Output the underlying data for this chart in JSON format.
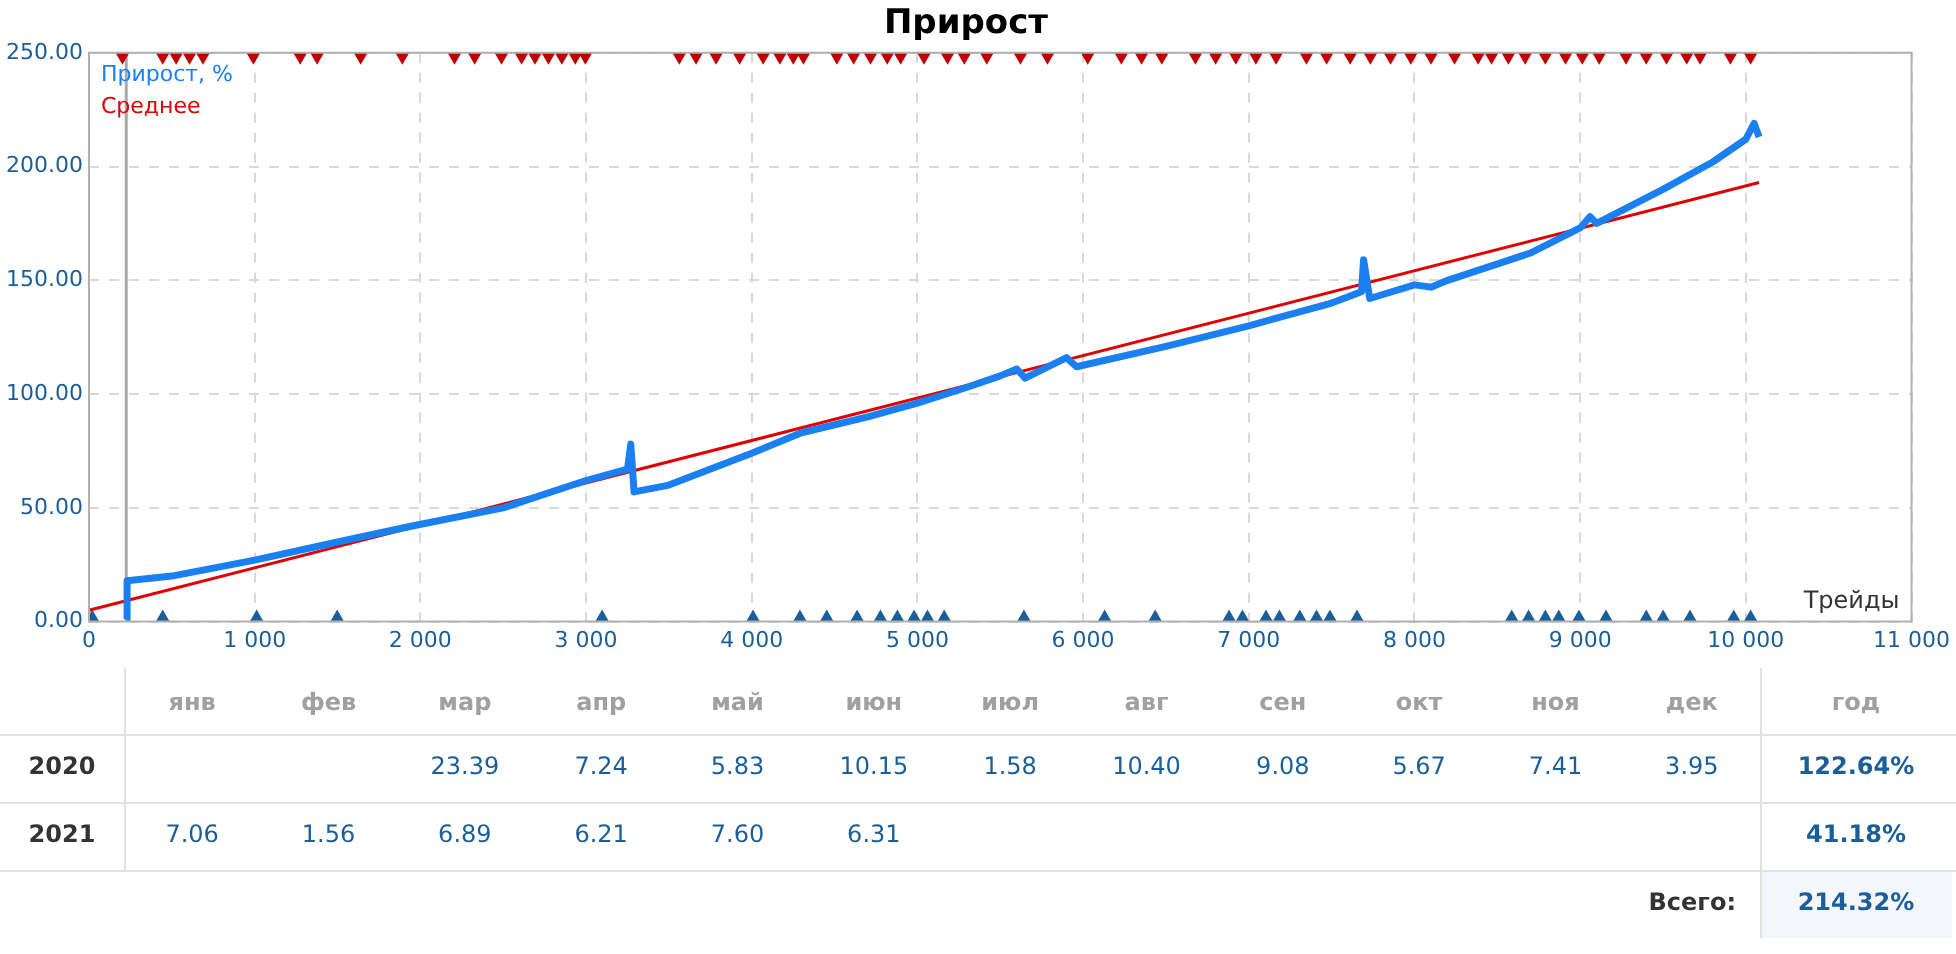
{
  "chart_data": [
    {
      "type": "line",
      "title": "Прирост",
      "xlabel": "Трейды",
      "xlim": [
        0,
        11000
      ],
      "ylim": [
        0,
        250
      ],
      "xticks": [
        0,
        {
          "value": 1000,
          "label": "1 000"
        },
        {
          "value": 2000,
          "label": "2 000"
        },
        {
          "value": 3000,
          "label": "3 000"
        },
        {
          "value": 4000,
          "label": "4 000"
        },
        {
          "value": 5000,
          "label": "5 000"
        },
        {
          "value": 6000,
          "label": "6 000"
        },
        {
          "value": 7000,
          "label": "7 000"
        },
        {
          "value": 8000,
          "label": "8 000"
        },
        {
          "value": 9000,
          "label": "9 000"
        },
        {
          "value": 10000,
          "label": "10 000"
        },
        {
          "value": 11000,
          "label": "11 000"
        }
      ],
      "yticks": [
        {
          "value": 0,
          "label": "0.00"
        },
        {
          "value": 50,
          "label": "50.00"
        },
        {
          "value": 100,
          "label": "100.00"
        },
        {
          "value": 150,
          "label": "150.00"
        },
        {
          "value": 200,
          "label": "200.00"
        },
        {
          "value": 250,
          "label": "250.00"
        }
      ],
      "grid": true,
      "legend": "top left",
      "line_style": "solid",
      "ref_lines": [
        {
          "axis": "x",
          "value": 225,
          "color": "#aaaaaa"
        }
      ],
      "series": [
        {
          "type": "line",
          "name": "Прирост, %",
          "color": "#1a7ff0",
          "marker": "none",
          "x": [
            225,
            230,
            500,
            1000,
            1500,
            1950,
            2500,
            3000,
            3250,
            3270,
            3290,
            3500,
            4000,
            4300,
            4700,
            5000,
            5300,
            5500,
            5600,
            5650,
            5900,
            5960,
            6500,
            7000,
            7500,
            7680,
            7693,
            7730,
            8000,
            8100,
            8200,
            8700,
            9000,
            9060,
            9100,
            9500,
            9800,
            10000,
            10050,
            10080
          ],
          "values": [
            1,
            18,
            20,
            27,
            35,
            42,
            50,
            62,
            67,
            78,
            57,
            60,
            74,
            83,
            90,
            96,
            103,
            108,
            111,
            107,
            116,
            112,
            121,
            130,
            140,
            145,
            159,
            142,
            148,
            147,
            150,
            162,
            173,
            178,
            175,
            190,
            202,
            212,
            219,
            213
          ]
        },
        {
          "type": "line",
          "name": "Среднее",
          "color": "#e00000",
          "marker": "none",
          "x": [
            0,
            10080
          ],
          "values": [
            5,
            193
          ]
        },
        {
          "type": "scatter",
          "color": "#c00000",
          "marker": "triangle",
          "x": [
            202,
            445,
            526,
            607,
            688,
            992,
            1275,
            1377,
            1640,
            1891,
            2206,
            2328,
            2490,
            2611,
            2692,
            2773,
            2854,
            2935,
            2996,
            3563,
            3664,
            3785,
            3927,
            4069,
            4170,
            4251,
            4312,
            4514,
            4615,
            4717,
            4818,
            4899,
            5040,
            5182,
            5283,
            5419,
            5622,
            5785,
            6028,
            6231,
            6353,
            6475,
            6678,
            6800,
            6922,
            7043,
            7165,
            7348,
            7470,
            7612,
            7734,
            7856,
            7978,
            8100,
            8242,
            8384,
            8465,
            8567,
            8668,
            8790,
            8912,
            9013,
            9115,
            9277,
            9399,
            9521,
            9643,
            9724,
            9907,
            10029
          ],
          "values": [
            250,
            250,
            250,
            250,
            250,
            250,
            250,
            250,
            250,
            250,
            250,
            250,
            250,
            250,
            250,
            250,
            250,
            250,
            250,
            250,
            250,
            250,
            250,
            250,
            250,
            250,
            250,
            250,
            250,
            250,
            250,
            250,
            250,
            250,
            250,
            250,
            250,
            250,
            250,
            250,
            250,
            250,
            250,
            250,
            250,
            250,
            250,
            250,
            250,
            250,
            250,
            250,
            250,
            250,
            250,
            250,
            250,
            250,
            250,
            250,
            250,
            250,
            250,
            250,
            250,
            250,
            250,
            250,
            250,
            250
          ]
        },
        {
          "type": "scatter",
          "color": "#1a5f9a",
          "marker": "triangle",
          "x": [
            20,
            445,
            1012,
            1498,
            3097,
            4008,
            4291,
            4453,
            4636,
            4777,
            4879,
            4980,
            5061,
            5162,
            5643,
            6130,
            6435,
            6881,
            6962,
            7104,
            7185,
            7308,
            7409,
            7490,
            7653,
            8587,
            8689,
            8790,
            8871,
            8993,
            9156,
            9399,
            9501,
            9663,
            9927,
            10029
          ],
          "values": [
            0,
            0,
            0,
            0,
            0,
            0,
            0,
            0,
            0,
            0,
            0,
            0,
            0,
            0,
            0,
            0,
            0,
            0,
            0,
            0,
            0,
            0,
            0,
            0,
            0,
            0,
            0,
            0,
            0,
            0,
            0,
            0,
            0,
            0,
            0,
            0
          ]
        }
      ]
    },
    {
      "type": "heatmap",
      "categories": [
        "янв",
        "фев",
        "мар",
        "апр",
        "май",
        "июн",
        "июл",
        "авг",
        "сен",
        "окт",
        "ноя",
        "дек",
        "год"
      ],
      "y_categories": [
        "2020",
        "2021"
      ],
      "cells": [
        [
          null,
          null,
          23.39,
          7.24,
          5.83,
          10.15,
          1.58,
          10.4,
          9.08,
          5.67,
          7.41,
          3.95,
          122.64
        ],
        [
          7.06,
          1.56,
          6.89,
          6.21,
          7.6,
          6.31,
          null,
          null,
          null,
          null,
          null,
          null,
          41.18
        ]
      ],
      "cell_labels": [
        [
          null,
          null,
          "23.39",
          "7.24",
          "5.83",
          "10.15",
          "1.58",
          "10.40",
          "9.08",
          "5.67",
          "7.41",
          "3.95",
          "122.64%"
        ],
        [
          "7.06",
          "1.56",
          "6.89",
          "6.21",
          "7.60",
          "6.31",
          null,
          null,
          null,
          null,
          null,
          null,
          "41.18%"
        ]
      ],
      "annotations": [
        "Всего:",
        "214.32%"
      ]
    }
  ]
}
